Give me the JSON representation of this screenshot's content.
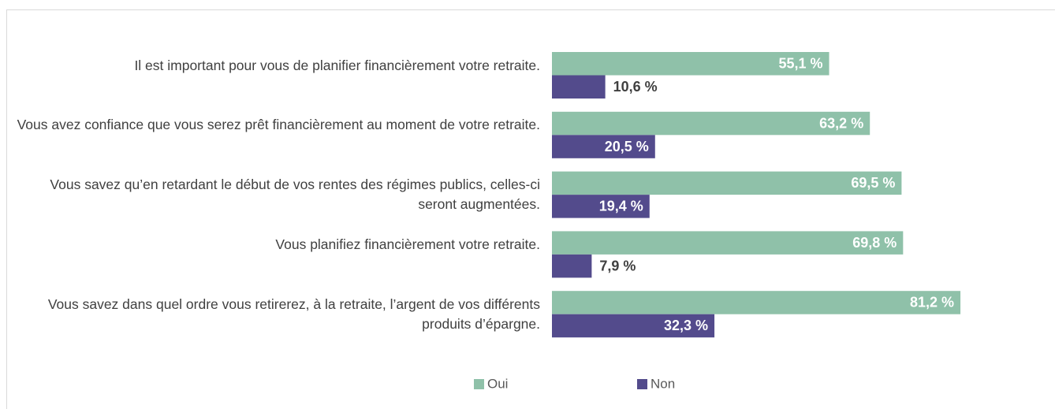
{
  "chart_data": {
    "type": "bar",
    "orientation": "horizontal",
    "categories": [
      "Il est important pour vous de planifier financièrement votre retraite.",
      "Vous avez confiance que vous serez prêt financièrement au moment de votre retraite.",
      "Vous savez qu’en retardant le début de vos rentes des régimes publics, celles-ci seront augmentées.",
      "Vous planifiez financièrement votre retraite.",
      "Vous savez dans quel ordre vous retirerez, à la retraite, l’argent de vos différents produits d’épargne."
    ],
    "series": [
      {
        "name": "Oui",
        "color": "#8fc1a9",
        "values": [
          55.1,
          63.2,
          69.5,
          69.8,
          81.2
        ],
        "value_labels": [
          "55,1 %",
          "63,2 %",
          "69,5 %",
          "69,8 %",
          "81,2 %"
        ]
      },
      {
        "name": "Non",
        "color": "#534b8c",
        "values": [
          10.6,
          20.5,
          19.4,
          7.9,
          32.3
        ],
        "value_labels": [
          "10,6 %",
          "20,5 %",
          "19,4 %",
          "7,9 %",
          "32,3 %"
        ]
      }
    ],
    "xlim": [
      0,
      100
    ],
    "legend": "bottom"
  }
}
